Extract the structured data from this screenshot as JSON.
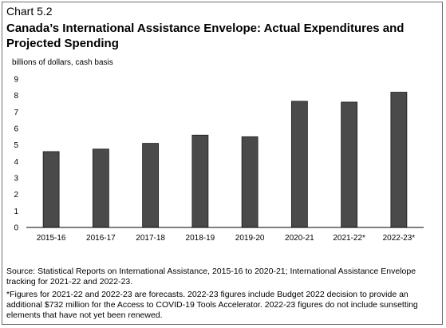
{
  "chart_label": "Chart 5.2",
  "chart_data": {
    "type": "bar",
    "title": "Canada’s International Assistance Envelope: Actual Expenditures and Projected Spending",
    "ylabel": "billions of dollars, cash basis",
    "xlabel": "",
    "categories": [
      "2015-16",
      "2016-17",
      "2017-18",
      "2018-19",
      "2019-20",
      "2020-21",
      "2021-22*",
      "2022-23*"
    ],
    "values": [
      4.6,
      4.75,
      5.1,
      5.6,
      5.5,
      7.65,
      7.6,
      8.2
    ],
    "ylim": [
      0,
      9
    ],
    "yticks": [
      0,
      1,
      2,
      3,
      4,
      5,
      6,
      7,
      8,
      9
    ],
    "grid": false,
    "bar_color": "#4a4a4a"
  },
  "notes": {
    "source": "Source: Statistical Reports on International Assistance, 2015-16 to 2020-21; International Assistance Envelope tracking for 2021-22 and 2022-23.",
    "footnote": "*Figures for 2021-22 and 2022-23 are forecasts. 2022-23 figures include Budget 2022 decision to provide an additional $732 million for the Access to COVID-19 Tools Accelerator. 2022-23 figures do not include sunsetting elements that have not yet been renewed."
  }
}
